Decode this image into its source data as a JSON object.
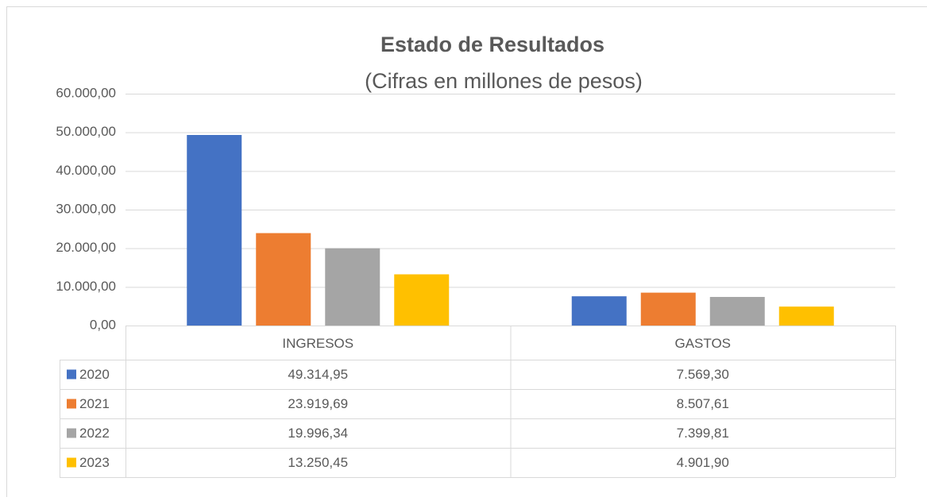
{
  "chart_data": {
    "type": "bar",
    "title": "Estado de Resultados",
    "subtitle": "(Cifras en millones de pesos)",
    "categories": [
      "INGRESOS",
      "GASTOS"
    ],
    "series": [
      {
        "name": "2020",
        "color": "#4472c4",
        "values": [
          49314.95,
          7569.3
        ],
        "value_labels": [
          "49.314,95",
          "7.569,30"
        ]
      },
      {
        "name": "2021",
        "color": "#ed7d31",
        "values": [
          23919.69,
          8507.61
        ],
        "value_labels": [
          "23.919,69",
          "8.507,61"
        ]
      },
      {
        "name": "2022",
        "color": "#a5a5a5",
        "values": [
          19996.34,
          7399.81
        ],
        "value_labels": [
          "19.996,34",
          "7.399,81"
        ]
      },
      {
        "name": "2023",
        "color": "#ffc000",
        "values": [
          13250.45,
          4901.9
        ],
        "value_labels": [
          "13.250,45",
          "4.901,90"
        ]
      }
    ],
    "ylim": [
      0,
      60000
    ],
    "yticks": [
      {
        "value": 0,
        "label": "0,00"
      },
      {
        "value": 10000,
        "label": "10.000,00"
      },
      {
        "value": 20000,
        "label": "20.000,00"
      },
      {
        "value": 30000,
        "label": "30.000,00"
      },
      {
        "value": 40000,
        "label": "40.000,00"
      },
      {
        "value": 50000,
        "label": "50.000,00"
      },
      {
        "value": 60000,
        "label": "60.000,00"
      }
    ],
    "grid": true
  }
}
